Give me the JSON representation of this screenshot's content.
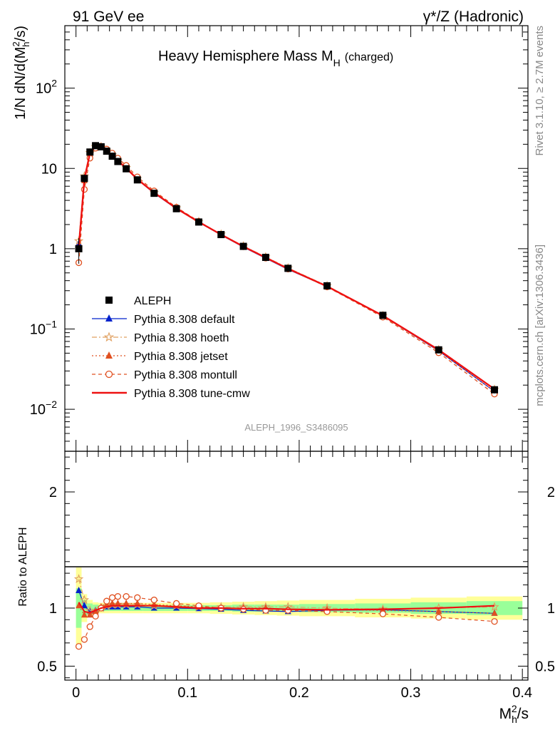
{
  "header": {
    "left_label": "91 GeV ee",
    "right_label": "γ*/Z (Hadronic)"
  },
  "side_labels": {
    "rivet": "Rivet 3.1.10, ≥ 2.7M events",
    "mcplots": "mcplots.cern.ch [arXiv:1306.3436]"
  },
  "chart_data": {
    "type": "line",
    "title": "Heavy Hemisphere Mass M",
    "title_sub": "H",
    "title_suffix": "(charged)",
    "watermark": "ALEPH_1996_S3486095",
    "ylabel": "1/N dN/d(M",
    "ylabel_sub": "h",
    "ylabel_sup": "2",
    "ylabel_tail": "/s)",
    "xlabel": "M",
    "xlabel_sub": "h",
    "xlabel_sup": "2",
    "xlabel_tail": "/s",
    "ratio_ylabel": "Ratio to ALEPH",
    "xlim": [
      -0.01,
      0.405
    ],
    "ylim_log": [
      0.003,
      600
    ],
    "ratio_ylim": [
      0.38,
      2.35
    ],
    "x_ticks": [
      {
        "value": 0.0,
        "label": "0"
      },
      {
        "value": 0.1,
        "label": "0.1"
      },
      {
        "value": 0.2,
        "label": "0.2"
      },
      {
        "value": 0.3,
        "label": "0.3"
      },
      {
        "value": 0.4,
        "label": "0.4"
      }
    ],
    "y_ticks": [
      {
        "value": 100,
        "base": "10",
        "exp": "2"
      },
      {
        "value": 10,
        "base": "10",
        "exp": ""
      },
      {
        "value": 1,
        "base": "1",
        "exp": ""
      },
      {
        "value": 0.1,
        "base": "10",
        "exp": "−1"
      },
      {
        "value": 0.01,
        "base": "10",
        "exp": "−2"
      }
    ],
    "ratio_ticks": [
      {
        "value": 0.5,
        "label": "0.5"
      },
      {
        "value": 1,
        "label": "1"
      },
      {
        "value": 2,
        "label": "2"
      }
    ],
    "x": [
      0.0025,
      0.0075,
      0.0125,
      0.0175,
      0.0225,
      0.0275,
      0.0325,
      0.0375,
      0.045,
      0.055,
      0.07,
      0.09,
      0.11,
      0.13,
      0.15,
      0.17,
      0.19,
      0.225,
      0.275,
      0.325,
      0.375
    ],
    "bin_edges": [
      0.0,
      0.005,
      0.01,
      0.015,
      0.02,
      0.025,
      0.03,
      0.035,
      0.04,
      0.05,
      0.06,
      0.08,
      0.1,
      0.12,
      0.14,
      0.16,
      0.18,
      0.2,
      0.25,
      0.3,
      0.35,
      0.4
    ],
    "data": {
      "name": "ALEPH",
      "values": [
        1.0,
        7.5,
        16.0,
        19.2,
        18.6,
        16.4,
        14.2,
        12.2,
        9.9,
        7.2,
        4.9,
        3.15,
        2.15,
        1.5,
        1.07,
        0.78,
        0.57,
        0.345,
        0.148,
        0.055,
        0.0175
      ]
    },
    "band_inner": [
      0.17,
      0.07,
      0.04,
      0.03,
      0.025,
      0.025,
      0.025,
      0.025,
      0.025,
      0.025,
      0.025,
      0.025,
      0.025,
      0.025,
      0.03,
      0.03,
      0.03,
      0.035,
      0.04,
      0.05,
      0.06
    ],
    "band_outer": [
      0.35,
      0.12,
      0.07,
      0.05,
      0.045,
      0.045,
      0.045,
      0.045,
      0.045,
      0.045,
      0.045,
      0.045,
      0.045,
      0.05,
      0.055,
      0.06,
      0.065,
      0.07,
      0.08,
      0.09,
      0.1
    ],
    "series": [
      {
        "name": "Pythia 8.308 default",
        "color": "#0022cc",
        "dash": "",
        "marker": "triangle-filled",
        "ratio": [
          1.15,
          1.02,
          0.97,
          0.98,
          1.0,
          1.01,
          1.01,
          1.01,
          1.01,
          1.01,
          1.0,
          1.0,
          0.995,
          0.99,
          0.98,
          0.975,
          0.97,
          0.98,
          0.985,
          0.97,
          0.955
        ]
      },
      {
        "name": "Pythia 8.308 hoeth",
        "color": "#e0a060",
        "dash": "7,3,2,3",
        "marker": "star-open",
        "ratio": [
          1.25,
          1.07,
          0.98,
          0.97,
          1.0,
          1.02,
          1.03,
          1.03,
          1.03,
          1.03,
          1.02,
          1.02,
          1.01,
          1.01,
          1.01,
          1.01,
          1.01,
          1.0,
          0.99,
          1.0,
          1.01
        ]
      },
      {
        "name": "Pythia 8.308 jetset",
        "color": "#e05020",
        "dash": "2,3",
        "marker": "triangle-filled",
        "ratio": [
          1.02,
          0.94,
          0.94,
          0.97,
          1.01,
          1.03,
          1.04,
          1.04,
          1.04,
          1.04,
          1.03,
          1.02,
          1.01,
          1.0,
          1.0,
          1.0,
          0.99,
          0.985,
          0.98,
          0.97,
          0.955
        ]
      },
      {
        "name": "Pythia 8.308 montull",
        "color": "#e05020",
        "dash": "5,4",
        "marker": "circle-open",
        "ratio": [
          0.67,
          0.73,
          0.84,
          0.93,
          1.0,
          1.06,
          1.09,
          1.1,
          1.1,
          1.09,
          1.07,
          1.04,
          1.02,
          1.0,
          0.99,
          0.98,
          0.98,
          0.97,
          0.95,
          0.92,
          0.885
        ]
      },
      {
        "name": "Pythia 8.308 tune-cmw",
        "color": "#ee1111",
        "dash": "",
        "marker": "none",
        "ratio": [
          1.05,
          0.97,
          0.96,
          0.98,
          1.0,
          1.01,
          1.02,
          1.02,
          1.02,
          1.02,
          1.02,
          1.01,
          1.0,
          1.0,
          0.995,
          0.995,
          0.99,
          0.985,
          0.99,
          1.0,
          1.02
        ]
      }
    ]
  }
}
